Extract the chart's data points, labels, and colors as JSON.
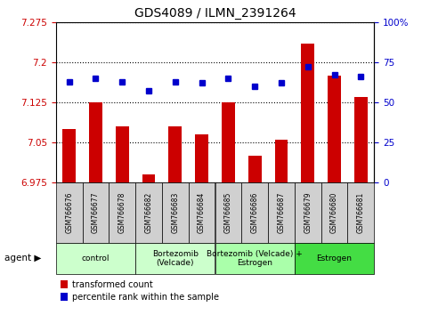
{
  "title": "GDS4089 / ILMN_2391264",
  "samples": [
    "GSM766676",
    "GSM766677",
    "GSM766678",
    "GSM766682",
    "GSM766683",
    "GSM766684",
    "GSM766685",
    "GSM766686",
    "GSM766687",
    "GSM766679",
    "GSM766680",
    "GSM766681"
  ],
  "bar_values": [
    7.075,
    7.125,
    7.08,
    6.99,
    7.08,
    7.065,
    7.125,
    7.025,
    7.055,
    7.235,
    7.175,
    7.135
  ],
  "dot_values": [
    63,
    65,
    63,
    57,
    63,
    62,
    65,
    60,
    62,
    72,
    67,
    66
  ],
  "ylim_left": [
    6.975,
    7.275
  ],
  "ylim_right": [
    0,
    100
  ],
  "yticks_left": [
    6.975,
    7.05,
    7.125,
    7.2,
    7.275
  ],
  "yticks_right": [
    0,
    25,
    50,
    75,
    100
  ],
  "ytick_labels_left": [
    "6.975",
    "7.05",
    "7.125",
    "7.2",
    "7.275"
  ],
  "ytick_labels_right": [
    "0",
    "25",
    "50",
    "75",
    "100%"
  ],
  "bar_color": "#cc0000",
  "dot_color": "#0000cc",
  "groups": [
    {
      "label": "control",
      "start": 0,
      "end": 3,
      "color": "#ccffcc"
    },
    {
      "label": "Bortezomib\n(Velcade)",
      "start": 3,
      "end": 6,
      "color": "#ccffcc"
    },
    {
      "label": "Bortezomib (Velcade) +\nEstrogen",
      "start": 6,
      "end": 9,
      "color": "#aaffaa"
    },
    {
      "label": "Estrogen",
      "start": 9,
      "end": 12,
      "color": "#44dd44"
    }
  ],
  "agent_label": "agent",
  "legend_bar_label": "transformed count",
  "legend_dot_label": "percentile rank within the sample",
  "bar_color_legend": "#cc0000",
  "dot_color_legend": "#0000cc",
  "bar_width": 0.5,
  "sample_box_color": "#d0d0d0",
  "background_color": "#ffffff"
}
